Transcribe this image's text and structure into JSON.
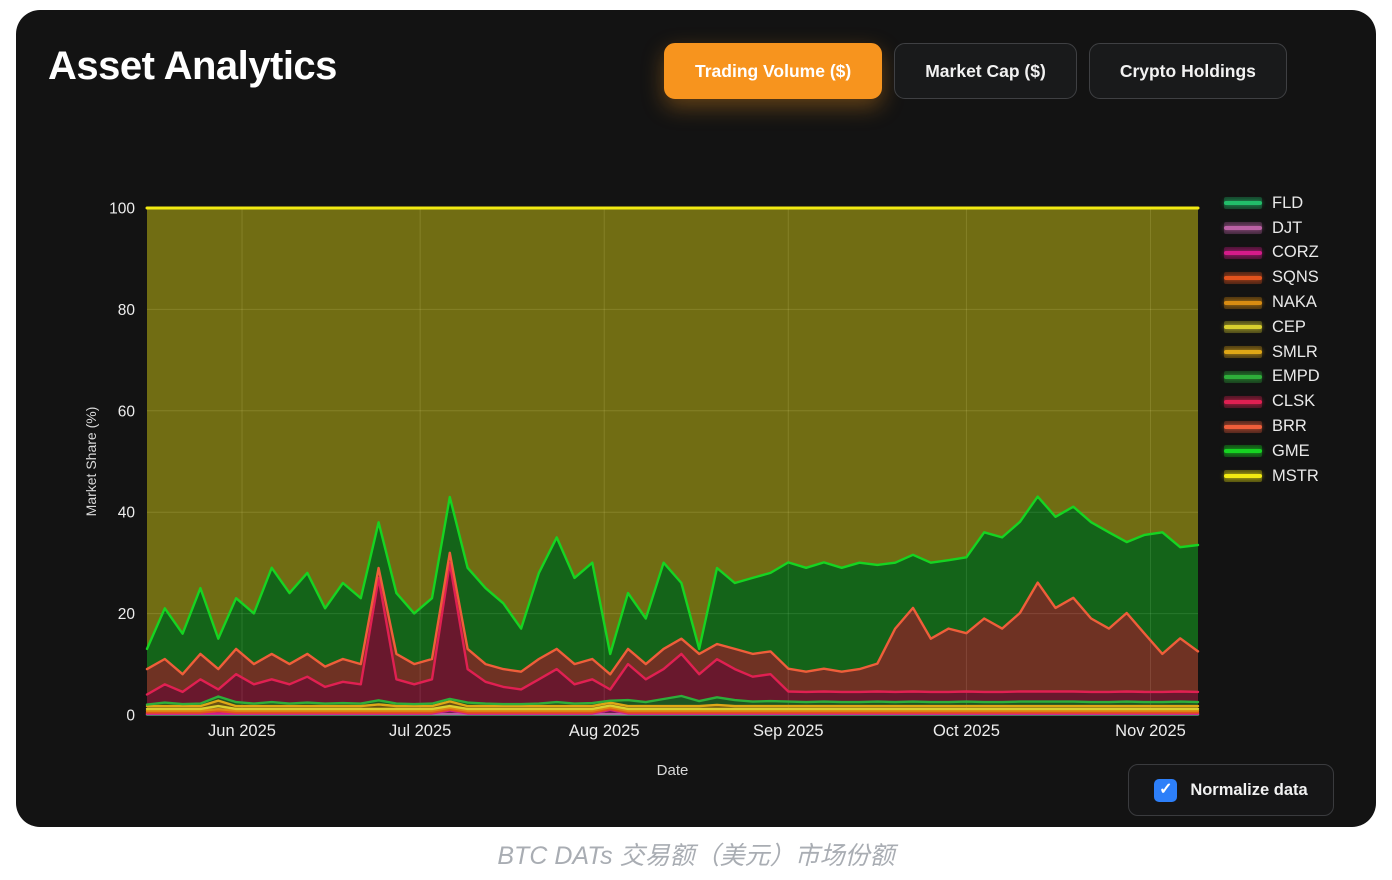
{
  "header": {
    "title": "Asset Analytics",
    "tabs": [
      {
        "label": "Trading Volume ($)",
        "active": true
      },
      {
        "label": "Market Cap ($)",
        "active": false
      },
      {
        "label": "Crypto Holdings",
        "active": false
      }
    ]
  },
  "controls": {
    "normalize_label": "Normalize data",
    "normalize_checked": true
  },
  "caption": "BTC DATs 交易额（美元）市场份额",
  "colors": {
    "accent_orange": "#F7941E",
    "checkbox_blue": "#2D7FF9",
    "panel_bg": "#131313",
    "grid": "rgba(255,255,255,0.15)",
    "axis_text": "#ededed"
  },
  "chart_data": {
    "type": "area",
    "stacked": true,
    "normalized": true,
    "title": "",
    "xlabel": "Date",
    "ylabel": "Market Share (%)",
    "ylim": [
      0,
      100
    ],
    "yticks": [
      0,
      20,
      40,
      60,
      80,
      100
    ],
    "grid": true,
    "legend_position": "right",
    "x_start_date": "2025-05-16",
    "x_step_days": 3,
    "x_total_days": 177,
    "xticks": [
      {
        "label": "Jun 2025",
        "day": 16
      },
      {
        "label": "Jul 2025",
        "day": 46
      },
      {
        "label": "Aug 2025",
        "day": 77
      },
      {
        "label": "Sep 2025",
        "day": 108
      },
      {
        "label": "Oct 2025",
        "day": 138
      },
      {
        "label": "Nov 2025",
        "day": 169
      }
    ],
    "series": [
      {
        "name": "FLD",
        "color": "#22bd6a",
        "values": [
          0.1,
          0.1,
          0.1,
          0.1,
          0.1,
          0.1,
          0.1,
          0.1,
          0.1,
          0.1,
          0.1,
          0.1,
          0.1,
          0.1,
          0.1,
          0.1,
          0.1,
          0.1,
          0.1,
          0.1,
          0.1,
          0.1,
          0.1,
          0.1,
          0.1,
          0.1,
          0.1,
          0.1,
          0.1,
          0.1,
          0.1,
          0.1,
          0.1,
          0.1,
          0.1,
          0.1,
          0.1,
          0.1,
          0.1,
          0.1,
          0.1,
          0.1,
          0.1,
          0.1,
          0.1,
          0.1,
          0.1,
          0.1,
          0.1,
          0.1,
          0.1,
          0.1,
          0.1,
          0.1,
          0.1,
          0.1,
          0.1,
          0.1,
          0.1,
          0.1
        ]
      },
      {
        "name": "DJT",
        "color": "#bb61a5",
        "values": [
          0.08,
          0.08,
          0.08,
          0.08,
          0.08,
          0.08,
          0.08,
          0.08,
          0.08,
          0.08,
          0.08,
          0.08,
          0.08,
          0.08,
          0.08,
          0.08,
          0.08,
          0.08,
          0.08,
          0.08,
          0.08,
          0.08,
          0.08,
          0.08,
          0.08,
          0.08,
          0.08,
          0.08,
          0.08,
          0.08,
          0.08,
          0.08,
          0.08,
          0.08,
          0.08,
          0.08,
          0.08,
          0.08,
          0.08,
          0.08,
          0.08,
          0.08,
          0.08,
          0.08,
          0.08,
          0.08,
          0.08,
          0.08,
          0.08,
          0.08,
          0.08,
          0.08,
          0.08,
          0.08,
          0.08,
          0.08,
          0.08,
          0.08,
          0.08,
          0.08
        ]
      },
      {
        "name": "CORZ",
        "color": "#d51b8a",
        "values": [
          0.12,
          0.12,
          0.12,
          0.12,
          0.12,
          0.12,
          0.12,
          0.12,
          0.12,
          0.12,
          0.12,
          0.12,
          0.12,
          0.12,
          0.12,
          0.12,
          0.12,
          0.7,
          0.12,
          0.12,
          0.12,
          0.12,
          0.12,
          0.12,
          0.12,
          0.12,
          0.8,
          0.12,
          0.12,
          0.12,
          0.12,
          0.12,
          0.12,
          0.12,
          0.12,
          0.12,
          0.12,
          0.12,
          0.12,
          0.12,
          0.12,
          0.12,
          0.12,
          0.12,
          0.12,
          0.12,
          0.12,
          0.12,
          0.12,
          0.12,
          0.12,
          0.12,
          0.12,
          0.12,
          0.12,
          0.12,
          0.12,
          0.12,
          0.12,
          0.12
        ]
      },
      {
        "name": "SQNS",
        "color": "#e2531d",
        "values": [
          0.2,
          0.2,
          0.2,
          0.2,
          0.5,
          0.2,
          0.2,
          0.2,
          0.2,
          0.2,
          0.2,
          0.2,
          0.2,
          0.2,
          0.2,
          0.2,
          0.2,
          0.2,
          0.2,
          0.2,
          0.2,
          0.2,
          0.2,
          0.2,
          0.2,
          0.2,
          0.2,
          0.2,
          0.2,
          0.2,
          0.2,
          0.2,
          0.2,
          0.2,
          0.2,
          0.2,
          0.2,
          0.2,
          0.2,
          0.2,
          0.2,
          0.2,
          0.2,
          0.2,
          0.2,
          0.2,
          0.2,
          0.2,
          0.2,
          0.2,
          0.2,
          0.2,
          0.2,
          0.2,
          0.2,
          0.2,
          0.2,
          0.2,
          0.2,
          0.2
        ]
      },
      {
        "name": "NAKA",
        "color": "#d98c12",
        "values": [
          0.35,
          0.35,
          0.35,
          0.35,
          0.35,
          0.35,
          0.35,
          0.35,
          0.35,
          0.35,
          0.35,
          0.35,
          0.35,
          0.35,
          0.35,
          0.35,
          0.35,
          0.35,
          0.35,
          0.35,
          0.35,
          0.35,
          0.35,
          0.35,
          0.35,
          0.35,
          0.35,
          0.35,
          0.35,
          0.35,
          0.35,
          0.35,
          0.35,
          0.35,
          0.35,
          0.35,
          0.35,
          0.35,
          0.35,
          0.35,
          0.35,
          0.35,
          0.35,
          0.35,
          0.35,
          0.35,
          0.35,
          0.35,
          0.35,
          0.35,
          0.35,
          0.35,
          0.35,
          0.35,
          0.35,
          0.35,
          0.35,
          0.35,
          0.35,
          0.35
        ]
      },
      {
        "name": "CEP",
        "color": "#d9cf2e",
        "values": [
          0.35,
          0.35,
          0.35,
          0.35,
          0.6,
          0.35,
          0.35,
          0.35,
          0.35,
          0.35,
          0.35,
          0.35,
          0.35,
          0.35,
          0.35,
          0.35,
          0.35,
          0.35,
          0.35,
          0.35,
          0.35,
          0.35,
          0.35,
          0.35,
          0.35,
          0.35,
          0.35,
          0.35,
          0.35,
          0.35,
          0.35,
          0.35,
          0.35,
          0.35,
          0.35,
          0.35,
          0.35,
          0.35,
          0.35,
          0.35,
          0.35,
          0.35,
          0.35,
          0.35,
          0.35,
          0.35,
          0.35,
          0.35,
          0.35,
          0.35,
          0.35,
          0.35,
          0.35,
          0.35,
          0.35,
          0.35,
          0.35,
          0.35,
          0.35,
          0.35
        ]
      },
      {
        "name": "SMLR",
        "color": "#dfa716",
        "values": [
          0.55,
          0.55,
          0.55,
          0.55,
          1.1,
          0.55,
          0.55,
          0.55,
          0.55,
          0.55,
          0.55,
          0.55,
          0.55,
          0.9,
          0.55,
          0.55,
          0.55,
          0.9,
          0.55,
          0.55,
          0.55,
          0.55,
          0.55,
          0.55,
          0.55,
          0.55,
          0.55,
          0.55,
          0.55,
          0.55,
          0.55,
          0.55,
          0.8,
          0.55,
          0.55,
          0.55,
          0.55,
          0.55,
          0.55,
          0.55,
          0.55,
          0.55,
          0.55,
          0.55,
          0.55,
          0.55,
          0.55,
          0.55,
          0.55,
          0.55,
          0.55,
          0.55,
          0.55,
          0.55,
          0.55,
          0.55,
          0.55,
          0.55,
          0.55,
          0.55
        ]
      },
      {
        "name": "EMPD",
        "color": "#2eae3a",
        "values": [
          0.3,
          0.7,
          0.4,
          0.5,
          0.8,
          0.8,
          0.5,
          0.8,
          0.5,
          0.7,
          0.5,
          0.6,
          0.5,
          0.8,
          0.5,
          0.4,
          0.5,
          0.5,
          0.7,
          0.5,
          0.4,
          0.4,
          0.5,
          0.8,
          0.5,
          0.6,
          0.4,
          1.2,
          0.8,
          1.4,
          2.0,
          1.0,
          1.5,
          1.2,
          0.9,
          1.0,
          0.9,
          0.8,
          0.9,
          0.8,
          0.8,
          0.9,
          0.8,
          0.9,
          0.8,
          0.8,
          0.9,
          0.8,
          0.8,
          0.9,
          0.9,
          0.9,
          0.9,
          0.8,
          0.8,
          0.9,
          0.8,
          0.8,
          0.9,
          0.8
        ]
      },
      {
        "name": "CLSK",
        "color": "#e02052",
        "values": [
          2.0,
          3.6,
          2.4,
          4.8,
          1.4,
          5.5,
          3.8,
          4.5,
          3.8,
          5.1,
          3.3,
          4.2,
          3.8,
          24.1,
          4.8,
          3.9,
          4.8,
          26.8,
          6.6,
          4.3,
          3.4,
          2.9,
          4.8,
          6.5,
          3.8,
          4.7,
          2.2,
          7.1,
          4.5,
          5.9,
          8.3,
          5.3,
          7.5,
          6.1,
          4.9,
          5.3,
          2.0,
          2.0,
          2.0,
          2.0,
          2.0,
          2.0,
          2.0,
          2.0,
          2.0,
          2.0,
          2.0,
          2.0,
          2.0,
          2.0,
          2.0,
          2.0,
          2.0,
          2.0,
          2.0,
          2.0,
          2.0,
          2.0,
          2.0,
          2.0
        ]
      },
      {
        "name": "BRR",
        "color": "#ef5e3a",
        "values": [
          5.0,
          5.0,
          3.5,
          5.0,
          4.0,
          5.0,
          4.0,
          5.0,
          4.0,
          4.5,
          4.0,
          4.5,
          4.0,
          2.0,
          5.0,
          4.0,
          4.0,
          2.0,
          4.0,
          3.5,
          3.5,
          3.5,
          4.0,
          4.0,
          4.0,
          4.0,
          3.0,
          3.0,
          3.0,
          4.0,
          3.0,
          4.0,
          3.0,
          4.0,
          4.5,
          4.5,
          4.5,
          4.0,
          4.5,
          4.0,
          4.5,
          5.5,
          12.5,
          16.5,
          10.5,
          12.5,
          11.5,
          14.5,
          12.5,
          15.5,
          21.5,
          16.5,
          18.5,
          14.5,
          12.5,
          15.5,
          11.5,
          7.5,
          10.5,
          8.0
        ]
      },
      {
        "name": "GME",
        "color": "#16d422",
        "values": [
          4,
          10,
          8,
          13,
          6,
          10,
          10,
          17,
          14,
          16,
          11.5,
          15,
          13,
          9,
          12,
          10,
          12,
          11,
          16,
          15,
          13,
          8.5,
          17,
          22,
          17,
          19,
          4,
          11,
          9,
          17,
          11,
          1,
          15,
          13,
          15,
          15.5,
          21,
          20.5,
          21,
          20.5,
          21,
          19.5,
          13,
          10.5,
          15,
          13.5,
          15,
          17,
          18,
          18,
          17,
          18,
          18,
          19,
          19,
          14,
          19.5,
          24,
          18,
          21
        ]
      },
      {
        "name": "MSTR",
        "color": "#f2ea12",
        "values": [
          87,
          79,
          84,
          75,
          85,
          77,
          80,
          71,
          76,
          72,
          79,
          74,
          77,
          62,
          76,
          80,
          77,
          57,
          71,
          75,
          78,
          83,
          72,
          65,
          73,
          70,
          88,
          76,
          81,
          70,
          74,
          87,
          71,
          74,
          73,
          72,
          70,
          71,
          70,
          71,
          70,
          70.5,
          70,
          68.5,
          70,
          69.5,
          69,
          64,
          65,
          62,
          57,
          61,
          59,
          62,
          64,
          66,
          64.5,
          64,
          67,
          66.5
        ]
      }
    ]
  }
}
